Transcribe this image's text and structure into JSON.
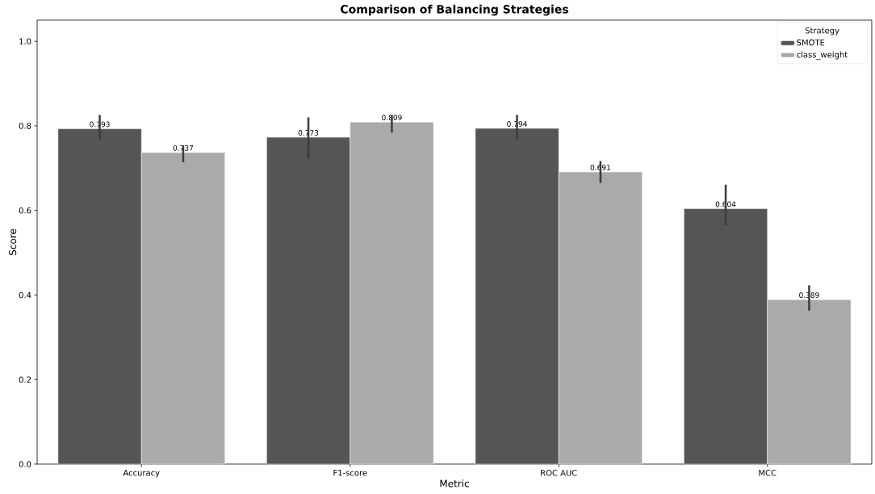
{
  "chart_data": {
    "type": "bar",
    "title": "Comparison of Balancing Strategies",
    "xlabel": "Metric",
    "ylabel": "Score",
    "legend_title": "Strategy",
    "legend": "top right",
    "data_labels": true,
    "grid": false,
    "categories": [
      "Accuracy",
      "F1-score",
      "ROC AUC",
      "MCC"
    ],
    "ylim": [
      0,
      1.05
    ],
    "yticks": [
      {
        "value": 0,
        "label": "0.0"
      },
      0.2,
      0.4,
      0.6,
      0.8,
      {
        "value": 1,
        "label": "1.0"
      }
    ],
    "series": [
      {
        "name": "SMOTE",
        "color": "#555555",
        "values": [
          0.793,
          0.773,
          0.794,
          0.604
        ],
        "errors": [
          [
            0.767,
            0.826
          ],
          [
            0.722,
            0.82
          ],
          [
            0.768,
            0.826
          ],
          [
            0.565,
            0.661
          ]
        ]
      },
      {
        "name": "class_weight",
        "color": "#aaaaaa",
        "values": [
          0.737,
          0.809,
          0.691,
          0.389
        ],
        "errors": [
          [
            0.714,
            0.754
          ],
          [
            0.784,
            0.826
          ],
          [
            0.665,
            0.717
          ],
          [
            0.363,
            0.423
          ]
        ]
      }
    ]
  }
}
